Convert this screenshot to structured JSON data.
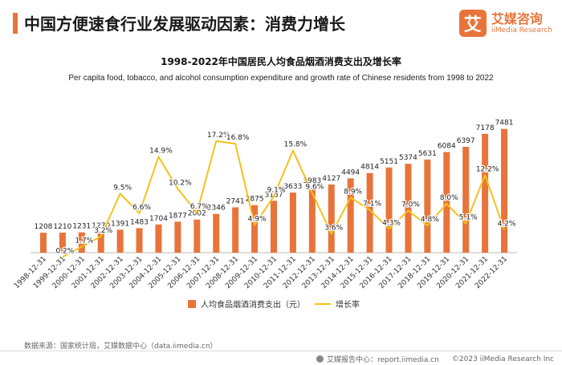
{
  "header": {
    "title": "中国方便速食行业发展驱动因素：消费力增长",
    "logo_mark": "艾",
    "logo_cn": "艾媒咨询",
    "logo_en": "iiMedia Research"
  },
  "colors": {
    "accent": "#e8743b",
    "bar": "#e8743b",
    "line": "#f5c11b"
  },
  "chart_data": {
    "type": "bar",
    "title": "1998-2022年中国居民人均食品烟酒消费支出及增长率",
    "subtitle": "Per capita food, tobacco, and alcohol consumption expenditure and growth rate of Chinese residents from 1998 to 2022",
    "categories": [
      "1998-12-31",
      "1999-12-31",
      "2000-12-31",
      "2001-12-31",
      "2002-12-31",
      "2003-12-31",
      "2004-12-31",
      "2005-12-31",
      "2006-12-31",
      "2007-12-31",
      "2008-12-31",
      "2009-12-31",
      "2010-12-31",
      "2011-12-31",
      "2012-12-31",
      "2013-12-31",
      "2014-12-31",
      "2015-12-31",
      "2016-12-31",
      "2017-12-31",
      "2018-12-31",
      "2019-12-31",
      "2020-12-31",
      "2021-12-31",
      "2022-12-31"
    ],
    "series": [
      {
        "name": "人均食品烟酒消费支出（元）",
        "type": "bar",
        "values": [
          1208,
          1210,
          1231,
          1270,
          1391,
          1483,
          1704,
          1877,
          2002,
          2346,
          2741,
          2875,
          3137,
          3633,
          3983,
          4127,
          4494,
          4814,
          5151,
          5374,
          5631,
          6084,
          6397,
          7178,
          7481
        ]
      },
      {
        "name": "增长率",
        "type": "line",
        "values": [
          null,
          0.2,
          1.7,
          3.2,
          9.5,
          6.6,
          14.9,
          10.2,
          6.7,
          17.2,
          16.8,
          4.9,
          9.1,
          15.8,
          9.6,
          3.6,
          8.9,
          7.1,
          4.3,
          7.0,
          4.8,
          8.0,
          5.1,
          12.2,
          4.2
        ],
        "labels": [
          "",
          "0.2%",
          "1.7%",
          "3.2%",
          "9.5%",
          "6.6%",
          "14.9%",
          "10.2%",
          "6.7%",
          "17.2%",
          "16.8%",
          "4.9%",
          "9.1%",
          "15.8%",
          "9.6%",
          "3.6%",
          "8.9%",
          "7.1%",
          "4.3%",
          "7.0%",
          "4.8%",
          "8.0%",
          "5.1%",
          "12.2%",
          "4.2%"
        ]
      }
    ],
    "ylim": [
      0,
      8000
    ],
    "y2lim": [
      0,
      20
    ],
    "grid": false,
    "legend": "bottom-center"
  },
  "source": "数据来源：国家统计局，艾媒数据中心（data.iimedia.cn）",
  "footer": {
    "report": "艾媒报告中心：report.iimedia.cn",
    "copyright": "©2023  iiMedia Research  Inc"
  }
}
